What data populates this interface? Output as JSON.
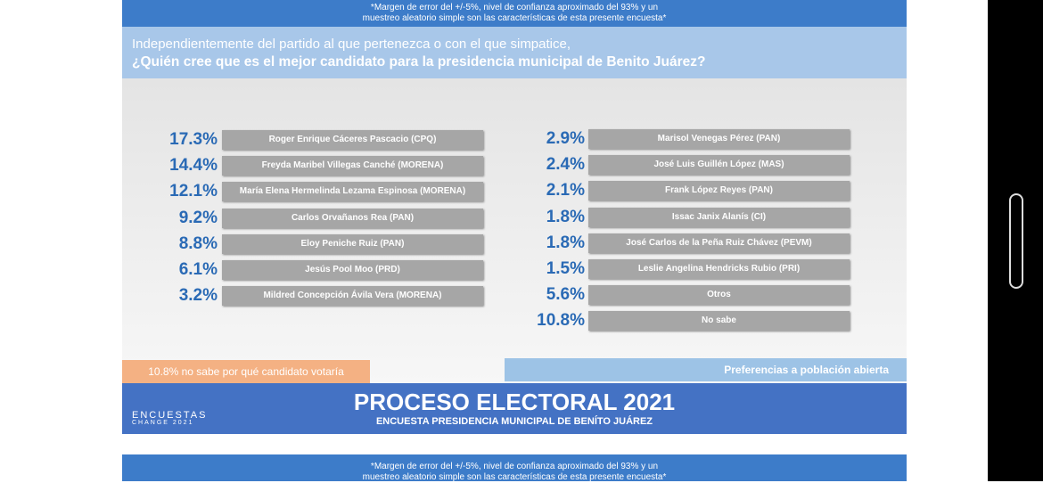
{
  "note": {
    "lines": [
      "*Margen de error del +/-5%, nivel de confianza aproximado del 93% y un",
      "muestreo aleatorio simple son las características de esta presente encuesta*"
    ]
  },
  "question": {
    "intro": "Independientemente del partido al que pertenezca o con el que simpatice,",
    "text": "¿Quién cree que es el mejor candidato para la presidencia municipal de Benito Juárez?"
  },
  "left_list": [
    {
      "percent": "17.3%",
      "label": "Roger Enrique Cáceres Pascacio (CPQ)"
    },
    {
      "percent": "14.4%",
      "label": "Freyda Maribel Villegas Canché (MORENA)"
    },
    {
      "percent": "12.1%",
      "label": "María Elena Hermelinda Lezama Espinosa (MORENA)"
    },
    {
      "percent": "9.2%",
      "label": "Carlos Orvañanos Rea (PAN)"
    },
    {
      "percent": "8.8%",
      "label": "Eloy Peniche Ruiz (PAN)"
    },
    {
      "percent": "6.1%",
      "label": "Jesús Pool Moo (PRD)"
    },
    {
      "percent": "3.2%",
      "label": "Mildred Concepción Ávila Vera (MORENA)"
    }
  ],
  "right_list": [
    {
      "percent": "2.9%",
      "label": "Marisol Venegas Pérez (PAN)"
    },
    {
      "percent": "2.4%",
      "label": "José Luis Guillén López (MAS)"
    },
    {
      "percent": "2.1%",
      "label": "Frank López Reyes (PAN)"
    },
    {
      "percent": "1.8%",
      "label": "Issac Janix Alanís (CI)"
    },
    {
      "percent": "1.8%",
      "label": "José Carlos de la Peña Ruiz Chávez (PEVM)"
    },
    {
      "percent": "1.5%",
      "label": "Leslie Angelina Hendricks Rubio (PRI)"
    },
    {
      "percent": "5.6%",
      "label": "Otros"
    },
    {
      "percent": "10.8%",
      "label": "No sabe"
    }
  ],
  "orange_note": "10.8% no sabe por qué candidato votaría",
  "blue_note": "Preferencias a población abierta",
  "footer": {
    "title": "PROCESO ELECTORAL 2021",
    "subtitle": "ENCUESTA PRESIDENCIA MUNICIPAL DE BENÍTO JUÁREZ",
    "logo_top": "ENCUESTAS",
    "logo_bottom": "CHANGE 2021"
  }
}
